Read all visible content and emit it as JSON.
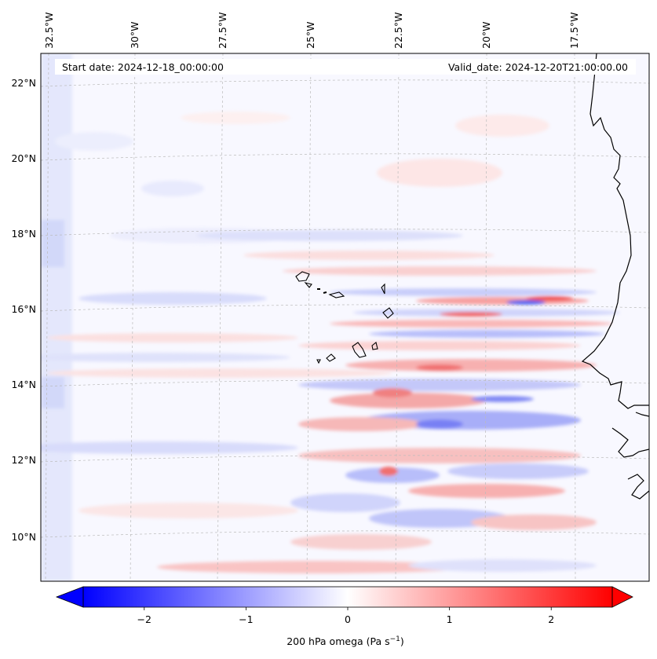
{
  "map": {
    "variable": "200 hPa omega",
    "start_date": "Start date: 2024-12-18_00:00:00",
    "valid_date": "Valid_date: 2024-12-20T21:00:00.00",
    "lon_labels": [
      "32.5°W",
      "30°W",
      "27.5°W",
      "25°W",
      "22.5°W",
      "20°W",
      "17.5°W"
    ],
    "lat_labels": [
      "22°N",
      "20°N",
      "18°N",
      "16°N",
      "14°N",
      "12°N",
      "10°N"
    ],
    "colors": {
      "negative": "#0000ff",
      "zero": "#ffffff",
      "positive": "#ff0000",
      "coast": "#000000",
      "grid": "#bbbbbb"
    }
  },
  "colorbar": {
    "ticks": [
      "−2",
      "−1",
      "0",
      "1",
      "2"
    ],
    "tick_values": [
      -2,
      -1,
      0,
      1,
      2
    ],
    "range": [
      -2.6,
      2.6
    ],
    "label_main": "200 hPa omega (Pa s",
    "label_sup": "−1",
    "label_end": ")"
  }
}
